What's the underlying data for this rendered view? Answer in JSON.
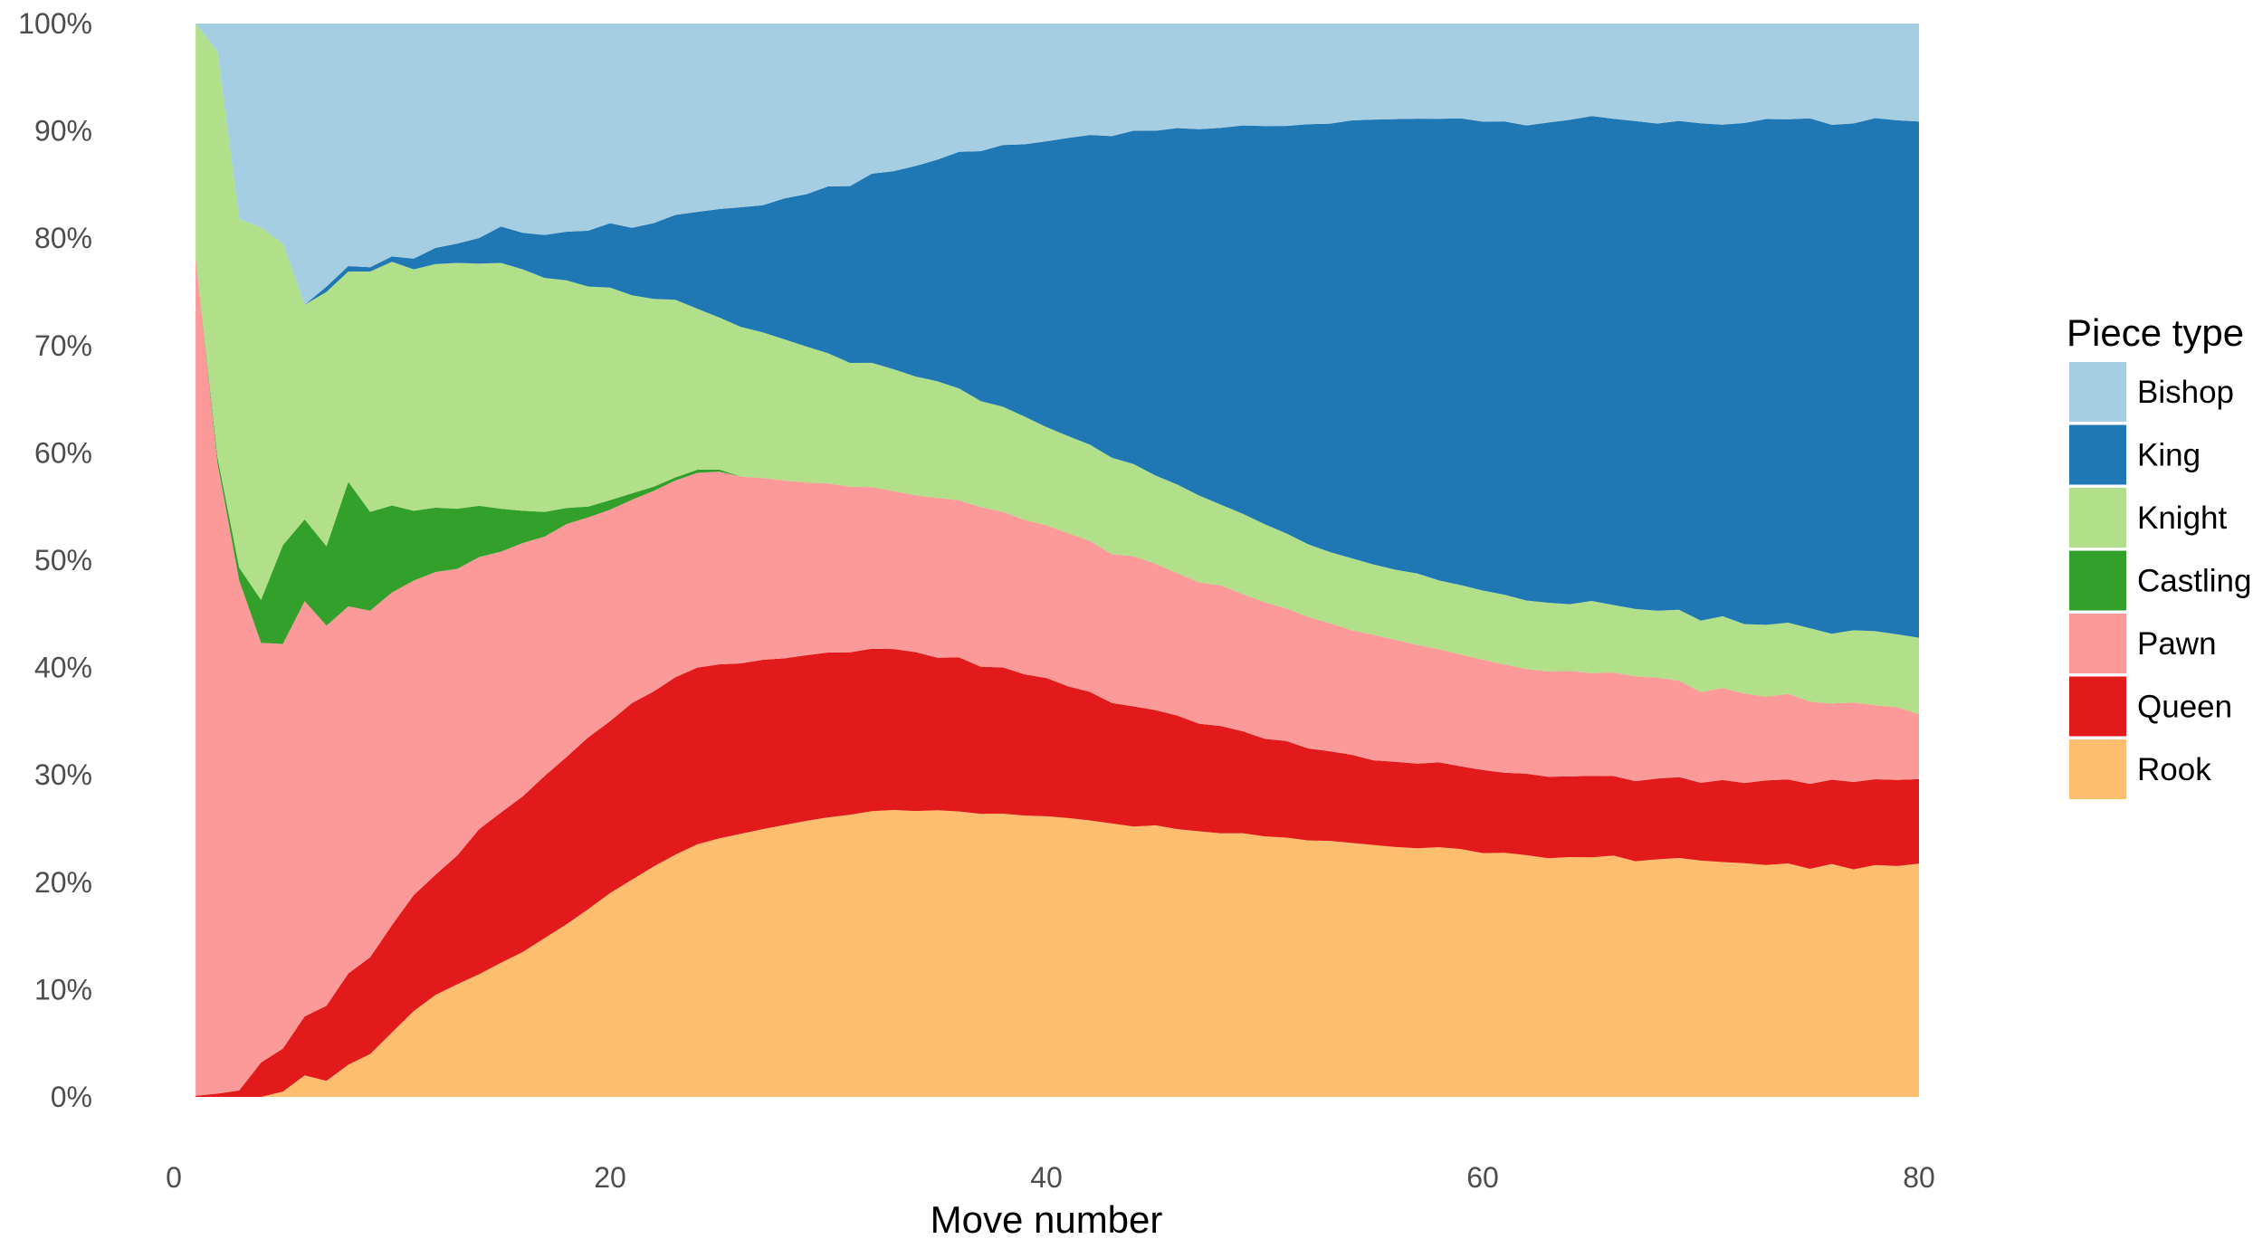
{
  "chart_data": {
    "type": "area",
    "stacked_percent": true,
    "xlabel": "Move number",
    "ylabel": "",
    "xlim": [
      1,
      80
    ],
    "ylim": [
      0,
      100
    ],
    "x_ticks": [
      0,
      20,
      40,
      60,
      80
    ],
    "y_ticks": [
      0,
      10,
      20,
      30,
      40,
      50,
      60,
      70,
      80,
      90,
      100
    ],
    "y_tick_labels": [
      "0%",
      "10%",
      "20%",
      "30%",
      "40%",
      "50%",
      "60%",
      "70%",
      "80%",
      "90%",
      "100%"
    ],
    "legend": {
      "title": "Piece type",
      "placement": "right"
    },
    "grid": false,
    "x": [
      1,
      2,
      3,
      4,
      5,
      6,
      7,
      8,
      9,
      10,
      11,
      12,
      13,
      14,
      15,
      16,
      17,
      18,
      19,
      20,
      21,
      22,
      23,
      24,
      25,
      26,
      27,
      28,
      29,
      30,
      31,
      32,
      33,
      34,
      35,
      36,
      37,
      38,
      39,
      40,
      41,
      42,
      43,
      44,
      45,
      46,
      47,
      48,
      49,
      50,
      51,
      52,
      53,
      54,
      55,
      56,
      57,
      58,
      59,
      60,
      61,
      62,
      63,
      64,
      65,
      66,
      67,
      68,
      69,
      70,
      71,
      72,
      73,
      74,
      75,
      76,
      77,
      78,
      79,
      80
    ],
    "series": [
      {
        "name": "Rook",
        "color": "#fdbf6f",
        "values": [
          0,
          0,
          0,
          0,
          0.5,
          2,
          1.5,
          3,
          4,
          6,
          8,
          9.5,
          10.5,
          11.5,
          12.5,
          13.5,
          14.8,
          16,
          17.5,
          19,
          20.3,
          21.6,
          22.8,
          24,
          24.8,
          25.5,
          26.1,
          26.6,
          27,
          27.3,
          27.6,
          27.8,
          27.8,
          27.7,
          27.8,
          27.6,
          27.5,
          27.5,
          27.5,
          27.4,
          27.3,
          27.3,
          27.2,
          27,
          27.1,
          26.9,
          26.9,
          26.8,
          26.9,
          26.7,
          26.6,
          26.5,
          26.6,
          26.5,
          26.5,
          26.4,
          26.4,
          26.5,
          26.4,
          26.1,
          26.2,
          26.1,
          25.8,
          25.9,
          25.9,
          26.1,
          25.6,
          25.9,
          26,
          25.8,
          25.8,
          25.6,
          25.5,
          25.6,
          25.5,
          26,
          25.5,
          26,
          26,
          26.2
        ]
      },
      {
        "name": "Queen",
        "color": "#e31a1c",
        "values": [
          0.1,
          0.3,
          0.6,
          3.2,
          4,
          5.5,
          7,
          8.5,
          9,
          10,
          10.8,
          11.2,
          12,
          13.6,
          14,
          14.5,
          15.1,
          15.5,
          16,
          16,
          16.5,
          16.4,
          16.7,
          16.8,
          16.7,
          16.5,
          16.5,
          16.3,
          16.2,
          16.1,
          15.9,
          15.8,
          15.6,
          15.4,
          14.8,
          14.9,
          14.3,
          14.2,
          13.8,
          13.5,
          12.9,
          12.7,
          12,
          12,
          11.5,
          11.4,
          10.9,
          10.9,
          10.4,
          10,
          9.9,
          9.5,
          9.3,
          9.2,
          8.9,
          9,
          9,
          9,
          8.8,
          8.9,
          8.6,
          8.8,
          8.8,
          8.7,
          8.8,
          8.6,
          8.7,
          8.8,
          8.8,
          8.5,
          9,
          8.8,
          9.3,
          9.2,
          9.5,
          9.4,
          9.8,
          9.6,
          9.7,
          9.5
        ]
      },
      {
        "name": "Pawn",
        "color": "#fb9a99",
        "values": [
          78.1,
          58.8,
          47.5,
          39.1,
          37.7,
          38.7,
          35.4,
          34.2,
          32.3,
          31,
          29.3,
          28.2,
          26.7,
          25.5,
          24.3,
          23.6,
          22.3,
          21.6,
          20.5,
          19.7,
          19,
          18.8,
          18.5,
          18.5,
          18.5,
          18.1,
          17.7,
          17.4,
          16.9,
          16.5,
          16.2,
          15.7,
          15.3,
          15.2,
          15.5,
          15.2,
          15.5,
          15.1,
          15.1,
          14.9,
          15,
          14.9,
          14.8,
          15,
          14.6,
          14.3,
          14.3,
          14.3,
          14,
          14,
          13.6,
          13.6,
          13.3,
          13,
          13.2,
          12.9,
          12.6,
          12,
          11.9,
          11.8,
          11.6,
          11.3,
          11.4,
          11.4,
          11.1,
          11.2,
          11.4,
          11,
          10.5,
          9.9,
          10.1,
          9.8,
          9.2,
          9.4,
          9.2,
          8.5,
          8.9,
          8.3,
          8.2,
          7.3
        ]
      },
      {
        "name": "Castling",
        "color": "#33a02c",
        "values": [
          0,
          0.5,
          1.2,
          4,
          9.2,
          7.6,
          7.4,
          11.6,
          9.2,
          8.1,
          6.5,
          6,
          5.6,
          4.8,
          4,
          3,
          2.3,
          1.5,
          1,
          0.9,
          0.6,
          0.4,
          0.3,
          0.3,
          0.2,
          0,
          0,
          0,
          0,
          0,
          0,
          0,
          0,
          0,
          0,
          0,
          0,
          0,
          0,
          0,
          0,
          0,
          0,
          0,
          0,
          0,
          0,
          0,
          0,
          0,
          0,
          0,
          0,
          0,
          0,
          0,
          0,
          0,
          0,
          0,
          0,
          0,
          0,
          0,
          0,
          0,
          0,
          0,
          0,
          0,
          0,
          0,
          0,
          0,
          0,
          0,
          0,
          0,
          0,
          0
        ]
      },
      {
        "name": "Knight",
        "color": "#b2df8a",
        "values": [
          21.8,
          37.8,
          32.5,
          34.7,
          28.1,
          20,
          23.7,
          19.6,
          22.4,
          22.7,
          22.5,
          22.7,
          22.9,
          22.7,
          22.9,
          22.5,
          21.8,
          21.1,
          20.5,
          19.8,
          18.5,
          17.6,
          16.7,
          15.3,
          14.6,
          14.5,
          14.2,
          13.8,
          13.3,
          12.7,
          12.1,
          12.1,
          11.8,
          11.5,
          11.3,
          10.8,
          10.3,
          10.2,
          10.1,
          9.6,
          9.5,
          9.5,
          9.6,
          9.2,
          8.8,
          8.9,
          8.8,
          8.2,
          8.2,
          8,
          7.7,
          7.5,
          7.4,
          7.5,
          7.4,
          7.4,
          7.6,
          7.3,
          7.4,
          7.4,
          7.5,
          7.4,
          7.4,
          7.2,
          7.8,
          7.3,
          7.3,
          7.3,
          7.7,
          7.8,
          7.9,
          7.6,
          7.9,
          7.8,
          8.2,
          7.8,
          8.1,
          8.3,
          8.2,
          8.6
        ]
      },
      {
        "name": "King",
        "color": "#1f78b4",
        "values": [
          0,
          0,
          0,
          0,
          0,
          0,
          0.5,
          0.5,
          0.4,
          0.5,
          1,
          1.5,
          1.8,
          2.4,
          3.4,
          3.4,
          4,
          4.5,
          5.2,
          6,
          6.3,
          7.1,
          8,
          9.2,
          10.4,
          11.6,
          12.4,
          13.8,
          14.9,
          16.3,
          17.3,
          18.4,
          19.2,
          20.4,
          21.5,
          22.9,
          24.3,
          25.4,
          26.6,
          27.9,
          29.2,
          30.6,
          32,
          33.3,
          34.4,
          35.8,
          37.1,
          38.3,
          39.6,
          40.8,
          41.8,
          43.4,
          44.5,
          45.7,
          46.8,
          47.6,
          48.3,
          49,
          49.7,
          50.2,
          50.8,
          51.3,
          51.9,
          52.3,
          52.4,
          52.6,
          53,
          53.1,
          53.2,
          54.3,
          54,
          54.9,
          55.6,
          55.2,
          57,
          56.8,
          56.8,
          57.5,
          57.9,
          58
        ]
      },
      {
        "name": "Bishop",
        "color": "#a6cee3",
        "values": [
          0,
          2.6,
          18.2,
          19,
          20.5,
          26.2,
          24.5,
          22.6,
          22.7,
          21.7,
          21.9,
          20.9,
          20.5,
          20.1,
          18.9,
          19.5,
          19.7,
          19.3,
          19.3,
          18.6,
          19.1,
          18.7,
          18,
          17.9,
          17.8,
          17.8,
          17.7,
          17.1,
          16.7,
          15.9,
          15.9,
          14.6,
          14.3,
          13.8,
          13.2,
          12.4,
          12.4,
          11.8,
          11.8,
          11.5,
          11.2,
          11,
          11.2,
          10.7,
          10.7,
          10.5,
          10.7,
          10.6,
          10.4,
          10.5,
          10.5,
          10.4,
          10.4,
          10.1,
          10.1,
          10.1,
          10.1,
          10.1,
          10.1,
          10.5,
          10.5,
          11,
          10.7,
          10.4,
          10,
          10.3,
          10.6,
          10.9,
          10.6,
          10.9,
          11.1,
          10.9,
          10.5,
          10.5,
          10.6,
          11.3,
          11.2,
          10.6,
          10.9,
          11
        ]
      }
    ]
  }
}
